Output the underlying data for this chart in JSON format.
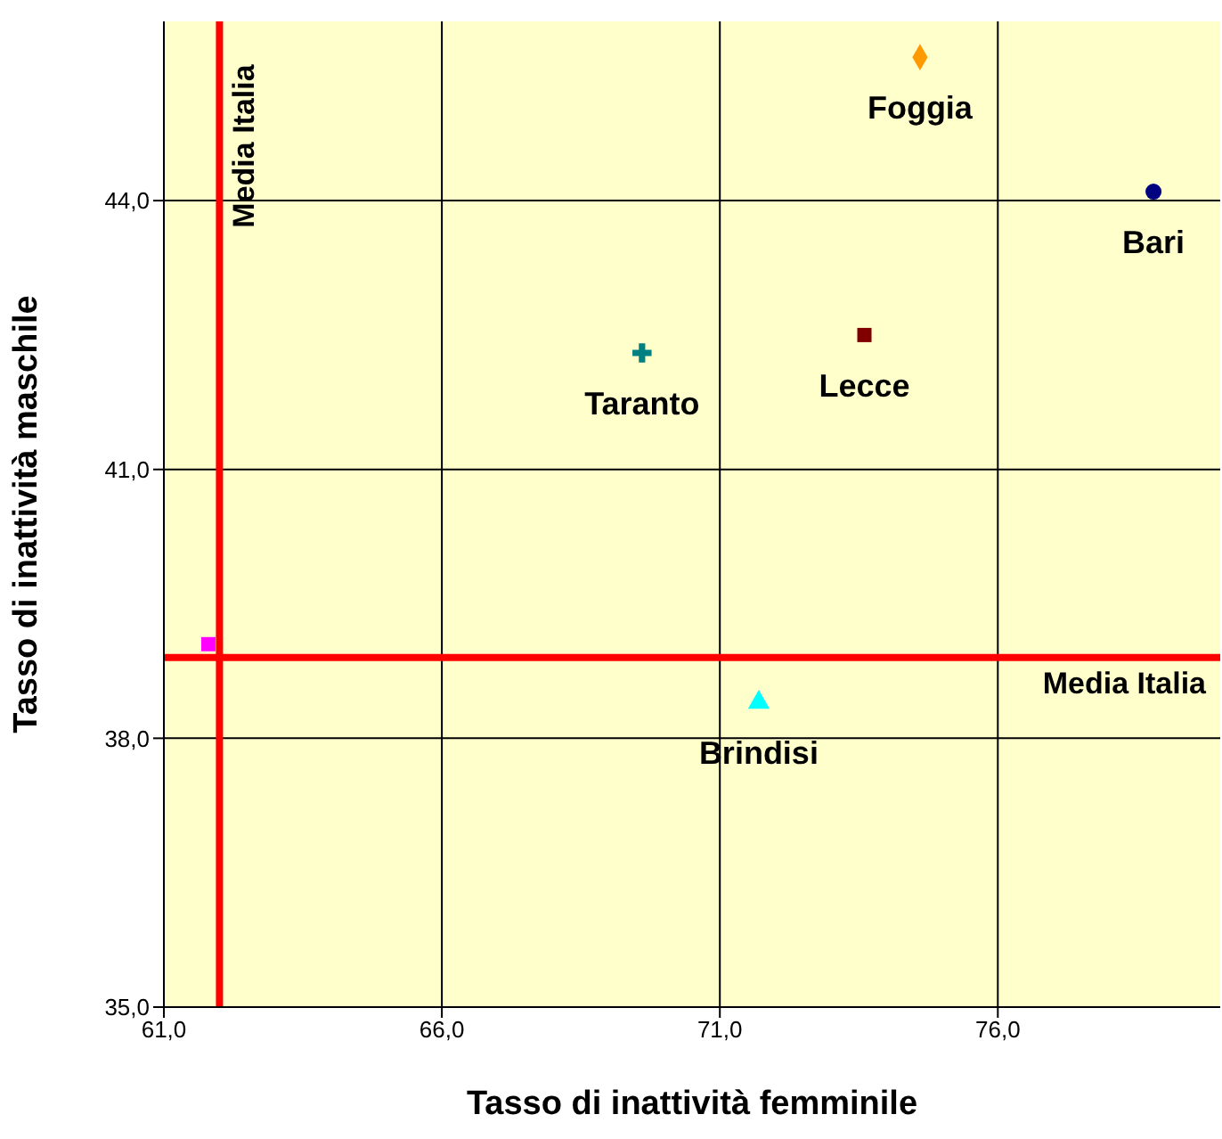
{
  "chart_data": {
    "type": "scatter",
    "xlabel": "Tasso di inattività femminile",
    "ylabel": "Tasso di inattività maschile",
    "xlim": [
      61,
      80
    ],
    "ylim": [
      35,
      46
    ],
    "xticks": [
      {
        "value": 61,
        "label": "61,0"
      },
      {
        "value": 66,
        "label": "66,0"
      },
      {
        "value": 71,
        "label": "71,0"
      },
      {
        "value": 76,
        "label": "76,0"
      }
    ],
    "yticks": [
      {
        "value": 35,
        "label": "35,0"
      },
      {
        "value": 38,
        "label": "38,0"
      },
      {
        "value": 41,
        "label": "41,0"
      },
      {
        "value": 44,
        "label": "44,0"
      }
    ],
    "grid": true,
    "series": [
      {
        "name": "Foggia",
        "color": "#ff9900",
        "marker": "diamond",
        "x": [
          74.6
        ],
        "values": [
          45.6
        ]
      },
      {
        "name": "Bari",
        "color": "#000080",
        "marker": "circle",
        "x": [
          78.8
        ],
        "values": [
          44.1
        ]
      },
      {
        "name": "Taranto",
        "color": "#008080",
        "marker": "cross",
        "x": [
          69.6
        ],
        "values": [
          42.3
        ]
      },
      {
        "name": "Lecce",
        "color": "#800000",
        "marker": "square",
        "x": [
          73.6
        ],
        "values": [
          42.5
        ]
      },
      {
        "name": "Brindisi",
        "color": "#00ffff",
        "marker": "triangle",
        "x": [
          71.7
        ],
        "values": [
          38.4
        ]
      },
      {
        "color": "#ff00ff",
        "marker": "square",
        "x": [
          61.8
        ],
        "values": [
          39.05
        ]
      }
    ],
    "ref_lines": [
      {
        "axis": "x",
        "value": 62,
        "label": "Media Italia",
        "color": "#ff0000"
      },
      {
        "axis": "y",
        "value": 38.9,
        "label": "Media Italia",
        "color": "#ff0000"
      }
    ]
  }
}
